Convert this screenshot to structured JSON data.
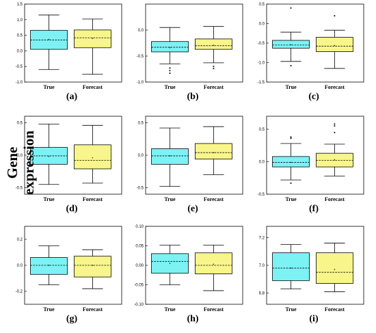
{
  "figure": {
    "ylabel": "Gene expression"
  },
  "colors": {
    "true_fill": "#7cf2f5",
    "forecast_fill": "#f8f58a",
    "stroke": "#000000"
  },
  "chart_data": [
    {
      "type": "box",
      "caption": "(a)",
      "categories": [
        "True",
        "Forecast"
      ],
      "ylim": [
        -1.0,
        1.5
      ],
      "yticks": [
        "-1.0",
        "-0.5",
        "0.0",
        "0.5",
        "1.0",
        "1.5"
      ],
      "boxes": [
        {
          "name": "True",
          "whisker_low": -0.6,
          "q1": 0.05,
          "median": 0.35,
          "mean": 0.37,
          "q3": 0.66,
          "whisker_high": 1.15,
          "outliers": []
        },
        {
          "name": "Forecast",
          "whisker_low": -0.75,
          "q1": 0.1,
          "median": 0.42,
          "mean": 0.4,
          "q3": 0.67,
          "whisker_high": 1.02,
          "outliers": []
        }
      ]
    },
    {
      "type": "box",
      "caption": "(b)",
      "categories": [
        "True",
        "Forecast"
      ],
      "ylim": [
        -1.0,
        0.5
      ],
      "yticks": [
        "-1.0",
        "-0.5",
        "0.0"
      ],
      "boxes": [
        {
          "name": "True",
          "whisker_low": -0.65,
          "q1": -0.42,
          "median": -0.33,
          "mean": -0.34,
          "q3": -0.22,
          "whisker_high": 0.05,
          "outliers": [
            -0.73,
            -0.78,
            -0.83
          ]
        },
        {
          "name": "Forecast",
          "whisker_low": -0.63,
          "q1": -0.37,
          "median": -0.3,
          "mean": -0.29,
          "q3": -0.17,
          "whisker_high": 0.07,
          "outliers": [
            -0.7,
            -0.74
          ]
        }
      ]
    },
    {
      "type": "box",
      "caption": "(c)",
      "categories": [
        "True",
        "Forecast"
      ],
      "ylim": [
        -1.5,
        0.5
      ],
      "yticks": [
        "-1.5",
        "-1.0",
        "-0.5",
        "0.0",
        "0.5"
      ],
      "boxes": [
        {
          "name": "True",
          "whisker_low": -0.97,
          "q1": -0.63,
          "median": -0.55,
          "mean": -0.54,
          "q3": -0.43,
          "whisker_high": -0.22,
          "outliers": [
            0.4,
            -1.08
          ]
        },
        {
          "name": "Forecast",
          "whisker_low": -1.15,
          "q1": -0.72,
          "median": -0.58,
          "mean": -0.56,
          "q3": -0.35,
          "whisker_high": -0.17,
          "outliers": [
            0.2
          ]
        }
      ]
    },
    {
      "type": "box",
      "caption": "(d)",
      "categories": [
        "True",
        "Forecast"
      ],
      "ylim": [
        -0.6,
        0.6
      ],
      "yticks": [
        "-0.5",
        "0.0",
        "0.5"
      ],
      "boxes": [
        {
          "name": "True",
          "whisker_low": -0.45,
          "q1": -0.14,
          "median": -0.01,
          "mean": -0.02,
          "q3": 0.12,
          "whisker_high": 0.48,
          "outliers": []
        },
        {
          "name": "Forecast",
          "whisker_low": -0.43,
          "q1": -0.21,
          "median": -0.08,
          "mean": -0.04,
          "q3": 0.16,
          "whisker_high": 0.46,
          "outliers": []
        }
      ]
    },
    {
      "type": "box",
      "caption": "(e)",
      "categories": [
        "True",
        "Forecast"
      ],
      "ylim": [
        -0.6,
        0.6
      ],
      "yticks": [
        "-0.5",
        "0.0",
        "0.5"
      ],
      "boxes": [
        {
          "name": "True",
          "whisker_low": -0.48,
          "q1": -0.14,
          "median": -0.01,
          "mean": -0.01,
          "q3": 0.1,
          "whisker_high": 0.42,
          "outliers": []
        },
        {
          "name": "Forecast",
          "whisker_low": -0.3,
          "q1": -0.06,
          "median": 0.04,
          "mean": 0.04,
          "q3": 0.18,
          "whisker_high": 0.44,
          "outliers": []
        }
      ]
    },
    {
      "type": "box",
      "caption": "(f)",
      "categories": [
        "True",
        "Forecast"
      ],
      "ylim": [
        -0.5,
        0.7
      ],
      "yticks": [
        "-0.5",
        "0.0",
        "0.5"
      ],
      "boxes": [
        {
          "name": "True",
          "whisker_low": -0.28,
          "q1": -0.08,
          "median": -0.01,
          "mean": -0.01,
          "q3": 0.08,
          "whisker_high": 0.28,
          "outliers": [
            0.36,
            0.38,
            -0.33
          ]
        },
        {
          "name": "Forecast",
          "whisker_low": -0.22,
          "q1": -0.08,
          "median": 0.02,
          "mean": 0.03,
          "q3": 0.13,
          "whisker_high": 0.27,
          "outliers": [
            0.45,
            0.55,
            0.58
          ]
        }
      ]
    },
    {
      "type": "box",
      "caption": "(g)",
      "categories": [
        "True",
        "Forecast"
      ],
      "ylim": [
        -0.3,
        0.3
      ],
      "yticks": [
        "-0.2",
        "0.0",
        "0.2"
      ],
      "boxes": [
        {
          "name": "True",
          "whisker_low": -0.15,
          "q1": -0.07,
          "median": 0.0,
          "mean": 0.0,
          "q3": 0.06,
          "whisker_high": 0.15,
          "outliers": []
        },
        {
          "name": "Forecast",
          "whisker_low": -0.18,
          "q1": -0.09,
          "median": 0.0,
          "mean": 0.0,
          "q3": 0.07,
          "whisker_high": 0.12,
          "outliers": []
        }
      ]
    },
    {
      "type": "box",
      "caption": "(h)",
      "categories": [
        "True",
        "Forecast"
      ],
      "ylim": [
        -0.1,
        0.1
      ],
      "yticks": [
        "-0.10",
        "-0.05",
        "0.00",
        "0.05",
        "0.10"
      ],
      "boxes": [
        {
          "name": "True",
          "whisker_low": -0.05,
          "q1": -0.02,
          "median": 0.01,
          "mean": 0.005,
          "q3": 0.03,
          "whisker_high": 0.052,
          "outliers": []
        },
        {
          "name": "Forecast",
          "whisker_low": -0.065,
          "q1": -0.022,
          "median": 0.0,
          "mean": 0.003,
          "q3": 0.032,
          "whisker_high": 0.052,
          "outliers": []
        }
      ]
    },
    {
      "type": "box",
      "caption": "(i)",
      "categories": [
        "True",
        "Forecast"
      ],
      "ylim": [
        6.72,
        7.28
      ],
      "yticks": [
        "6.8",
        "7.0",
        "7.2"
      ],
      "boxes": [
        {
          "name": "True",
          "whisker_low": 6.83,
          "q1": 6.89,
          "median": 6.98,
          "mean": 6.98,
          "q3": 7.09,
          "whisker_high": 7.15,
          "outliers": []
        },
        {
          "name": "Forecast",
          "whisker_low": 6.81,
          "q1": 6.87,
          "median": 6.95,
          "mean": 6.97,
          "q3": 7.09,
          "whisker_high": 7.16,
          "outliers": []
        }
      ]
    }
  ]
}
